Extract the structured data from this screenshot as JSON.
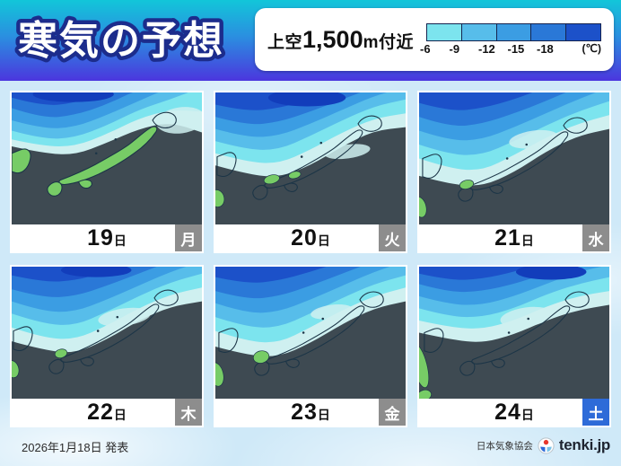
{
  "header": {
    "title": "寒気の予想"
  },
  "legend": {
    "label_prefix": "上空",
    "label_big": "1,500",
    "label_suffix": "m付近",
    "ticks": [
      "-6",
      "-9",
      "-12",
      "-15",
      "-18"
    ],
    "unit": "(℃)",
    "cell_colors": [
      "#7ce4ee",
      "#57bdea",
      "#3b9de3",
      "#2a78d7",
      "#1c51c9"
    ]
  },
  "panels": [
    {
      "date": "19",
      "date_suffix": "日",
      "weekday": "月",
      "weekday_bg": "#8d8d8d"
    },
    {
      "date": "20",
      "date_suffix": "日",
      "weekday": "火",
      "weekday_bg": "#8d8d8d"
    },
    {
      "date": "21",
      "date_suffix": "日",
      "weekday": "水",
      "weekday_bg": "#8d8d8d"
    },
    {
      "date": "22",
      "date_suffix": "日",
      "weekday": "木",
      "weekday_bg": "#8d8d8d"
    },
    {
      "date": "23",
      "date_suffix": "日",
      "weekday": "金",
      "weekday_bg": "#8d8d8d"
    },
    {
      "date": "24",
      "date_suffix": "日",
      "weekday": "土",
      "weekday_bg": "#2e6bd8"
    }
  ],
  "footer": {
    "issued": "2026年1月18日 発表",
    "agency": "日本気象協会",
    "brand": "tenki.jp"
  },
  "colors": {
    "header_top": "#12c6d9",
    "header_bottom": "#4b36de",
    "page_bg": "#cfe9f8",
    "slate": "#3e4a52",
    "pale": "#cff0f0",
    "m6": "#7ce4ee",
    "m9": "#57bdea",
    "m12": "#3b9de3",
    "m15": "#2a78d7",
    "m18": "#1c51c9",
    "core": "#123dbb",
    "land": "#77cc66",
    "coast": "#1c3547",
    "title_outline": "#1c2c8c"
  }
}
